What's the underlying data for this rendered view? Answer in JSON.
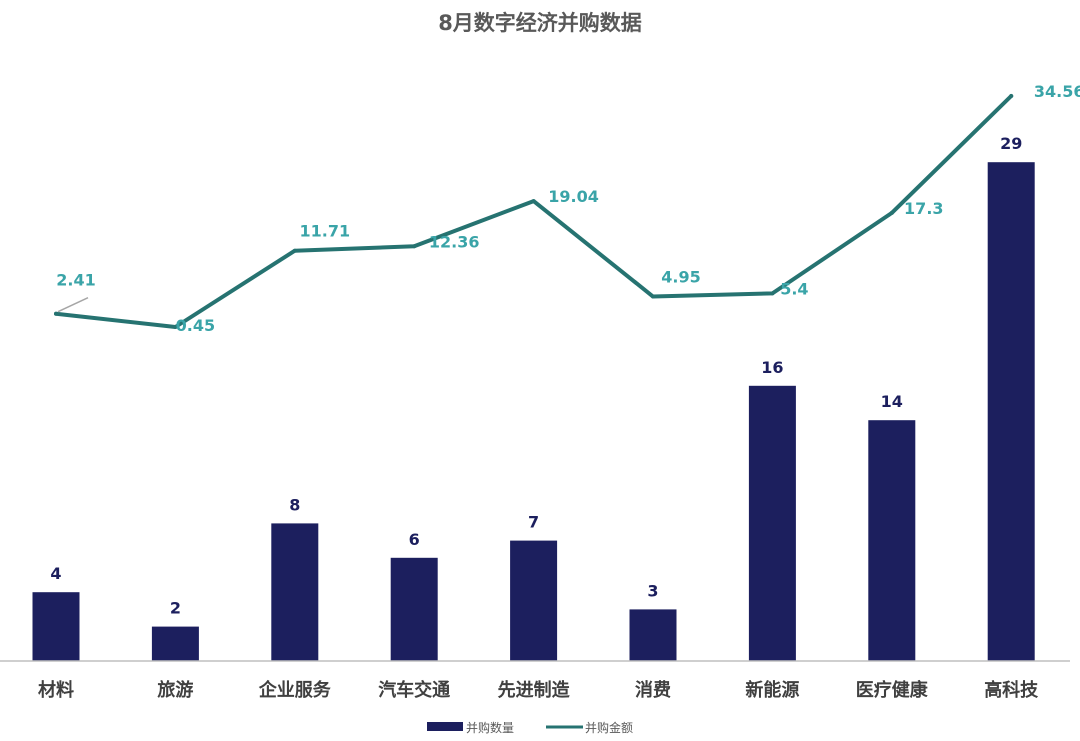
{
  "colors": {
    "bar": "#1c1f5e",
    "line": "#267371",
    "line_label": "#3aa4a8",
    "axis": "#bfbfbf",
    "leader": "#a6a6a6"
  },
  "chart_data": {
    "type": "bar",
    "title": "8月数字经济并购数据",
    "categories": [
      "材料",
      "旅游",
      "企业服务",
      "汽车交通",
      "先进制造",
      "消费",
      "新能源",
      "医疗健康",
      "高科技"
    ],
    "series": [
      {
        "name": "并购数量",
        "type": "bar",
        "values": [
          4,
          2,
          8,
          6,
          7,
          3,
          16,
          14,
          29
        ],
        "labels": [
          "4",
          "2",
          "8",
          "6",
          "7",
          "3",
          "16",
          "14",
          "29"
        ]
      },
      {
        "name": "并购金额",
        "type": "line",
        "values": [
          2.41,
          0.45,
          11.71,
          12.36,
          19.04,
          4.95,
          5.4,
          17.3,
          34.56
        ],
        "labels": [
          "2.41",
          "0.45",
          "11.71",
          "12.36",
          "19.04",
          "4.95",
          "5.4",
          "17.3",
          "34.56"
        ]
      }
    ],
    "legend_position": "bottom",
    "grid": false
  }
}
